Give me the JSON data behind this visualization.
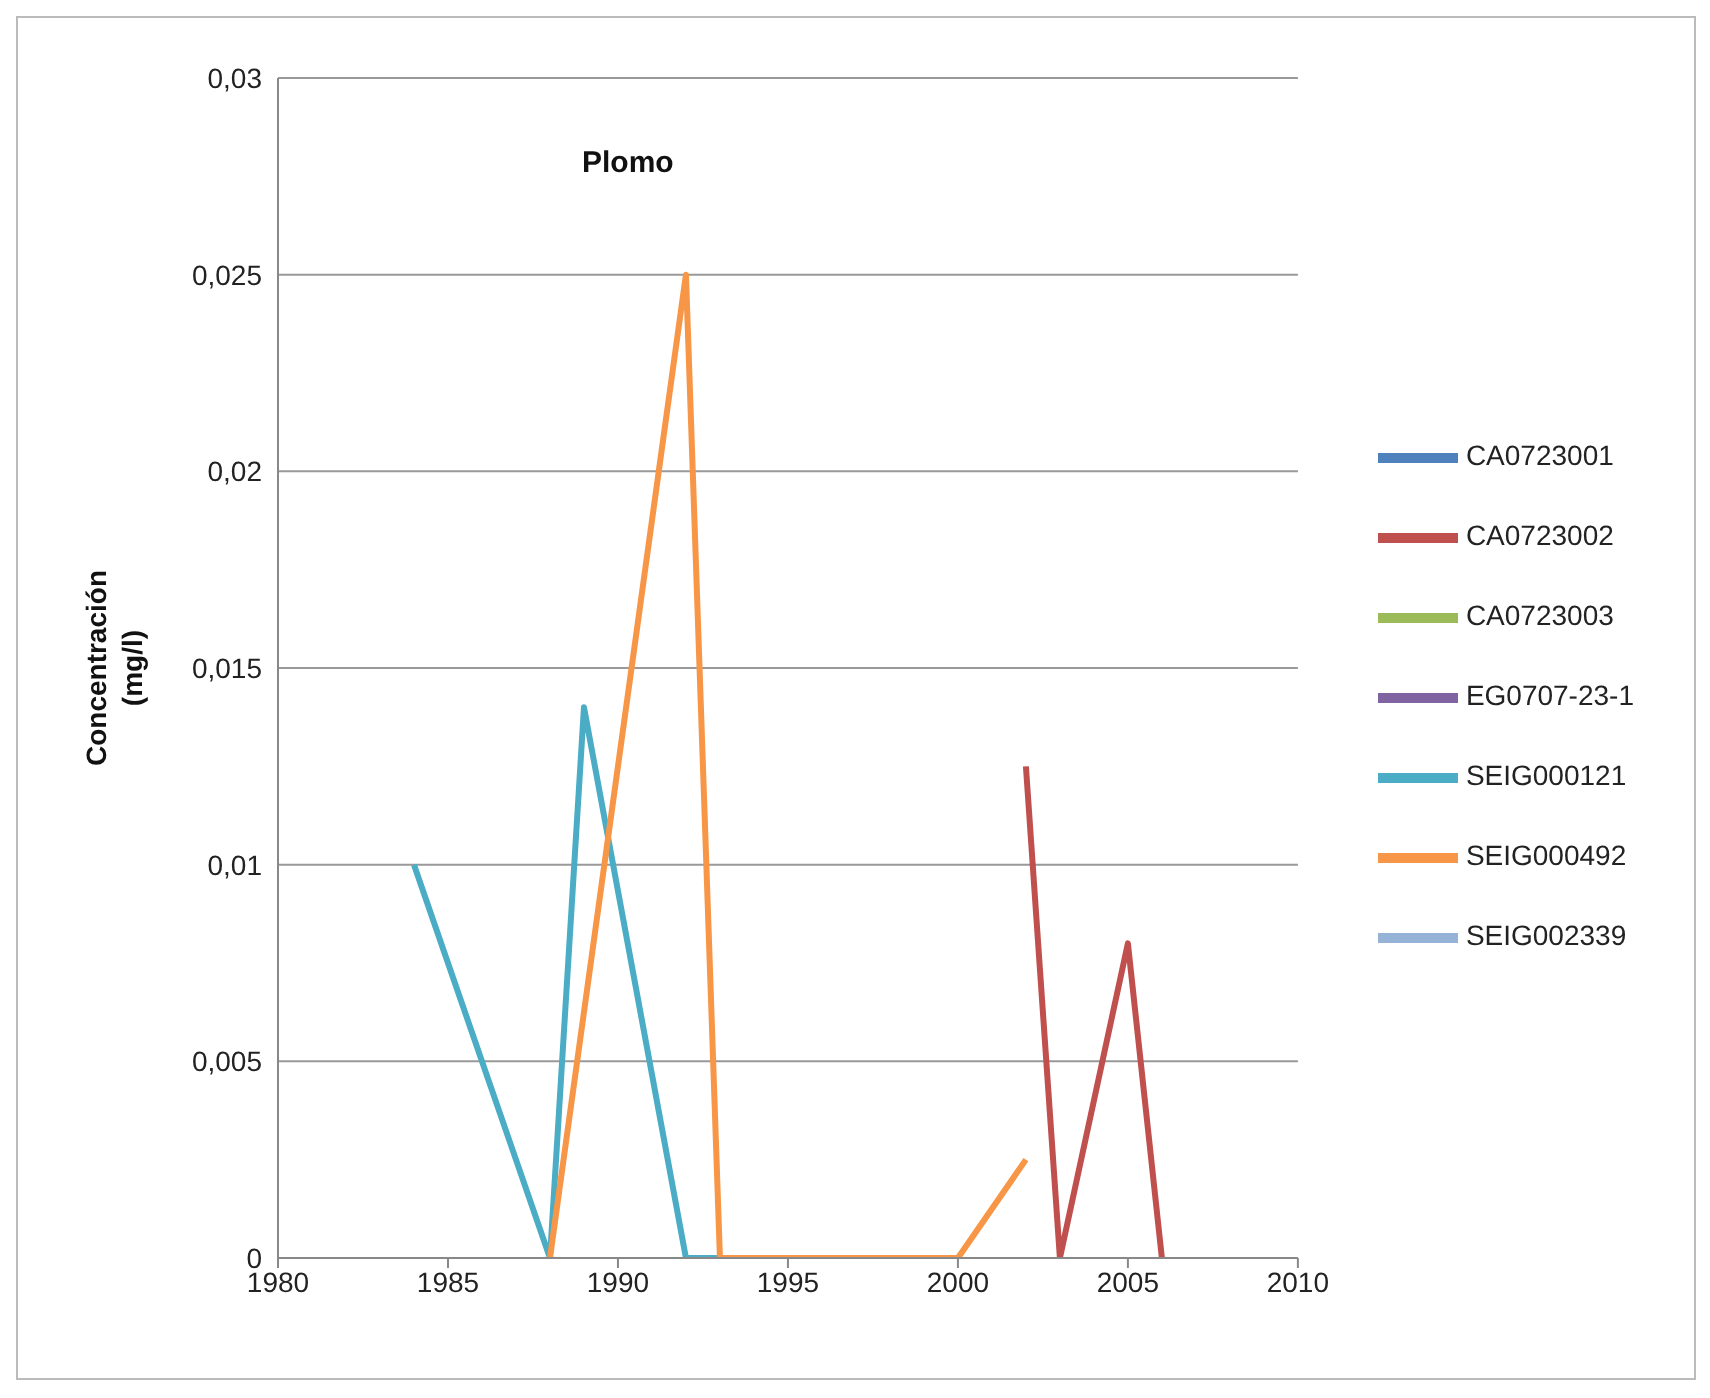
{
  "chart_data": {
    "type": "line",
    "title": "Plomo",
    "ylabel": "Concentración\n(mg/l)",
    "xlim": [
      1980,
      2010
    ],
    "xticks": [
      1980,
      1985,
      1990,
      1995,
      2000,
      2005,
      2010
    ],
    "ylim": [
      0,
      0.03
    ],
    "yticks": [
      {
        "value": 0,
        "label": "0"
      },
      {
        "value": 0.005,
        "label": "0,005"
      },
      {
        "value": 0.01,
        "label": "0,01"
      },
      {
        "value": 0.015,
        "label": "0,015"
      },
      {
        "value": 0.02,
        "label": "0,02"
      },
      {
        "value": 0.025,
        "label": "0,025"
      },
      {
        "value": 0.03,
        "label": "0,03"
      }
    ],
    "grid": "y",
    "legend": "right",
    "marker": "none",
    "series": [
      {
        "name": "CA0723001",
        "color": "#4f81bd"
      },
      {
        "name": "CA0723002",
        "color": "#c0504d",
        "x": [
          2002,
          2003,
          2005,
          2006
        ],
        "values": [
          0.0125,
          0,
          0.008,
          0
        ]
      },
      {
        "name": "CA0723003",
        "color": "#9bbb59"
      },
      {
        "name": "EG0707-23-1",
        "color": "#8064a2"
      },
      {
        "name": "SEIG000121",
        "color": "#4bacc6",
        "x": [
          1984,
          1988,
          1989,
          1992,
          1993
        ],
        "values": [
          0.01,
          0,
          0.014,
          0,
          0
        ]
      },
      {
        "name": "SEIG000492",
        "color": "#f79646",
        "x": [
          1988,
          1992,
          1993,
          2000,
          2002
        ],
        "values": [
          0,
          0.025,
          0,
          0,
          0.0025
        ]
      },
      {
        "name": "SEIG002339",
        "color": "#95b3d7"
      }
    ]
  }
}
